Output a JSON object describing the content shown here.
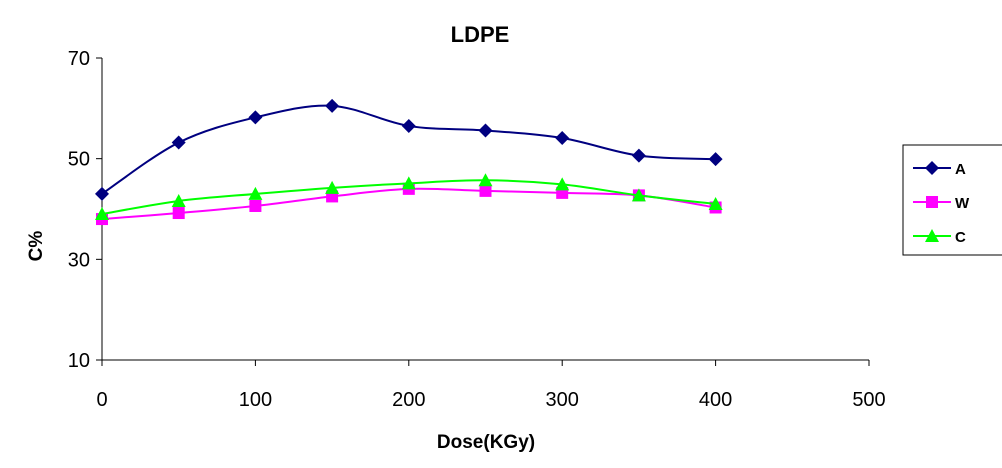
{
  "chart_data": {
    "type": "line",
    "title": "LDPE",
    "xlabel": "Dose(KGy)",
    "ylabel": "C%",
    "xlim": [
      0,
      500
    ],
    "ylim": [
      10,
      70
    ],
    "x_ticks": [
      "0",
      "100",
      "200",
      "300",
      "400",
      "500"
    ],
    "y_ticks": [
      "10",
      "30",
      "50",
      "70"
    ],
    "grid": false,
    "legend_position": "right",
    "x": [
      0,
      50,
      100,
      150,
      200,
      250,
      300,
      350,
      400
    ],
    "series": [
      {
        "name": "A",
        "color": "#000080",
        "marker": "diamond",
        "values": [
          43,
          53.2,
          58.2,
          60.5,
          56.5,
          55.6,
          54.1,
          50.6,
          49.9
        ]
      },
      {
        "name": "W",
        "color": "#FF00FF",
        "marker": "square",
        "values": [
          38,
          39.2,
          40.6,
          42.5,
          44,
          43.6,
          43.2,
          42.7,
          40.3
        ]
      },
      {
        "name": "C",
        "color": "#00FF00",
        "marker": "triangle",
        "values": [
          39,
          41.6,
          43,
          44.2,
          45.1,
          45.7,
          44.9,
          42.7,
          41
        ]
      }
    ]
  }
}
